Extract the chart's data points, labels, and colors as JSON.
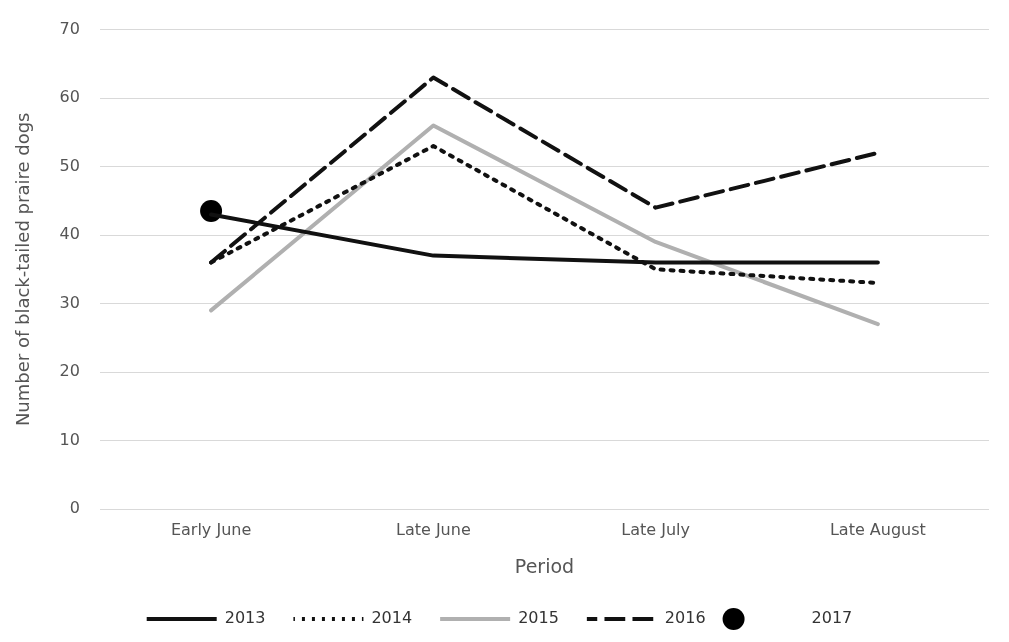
{
  "chart_data": {
    "type": "line",
    "xlabel": "Period",
    "ylabel": "Number of black-tailed praire dogs",
    "categories": [
      "Early June",
      "Late June",
      "Late July",
      "Late August"
    ],
    "series": [
      {
        "name": "2013",
        "color": "#111111",
        "values": [
          43,
          37,
          36,
          36
        ],
        "line_style": "solid",
        "marker": "none"
      },
      {
        "name": "2014",
        "color": "#111111",
        "values": [
          36,
          53,
          35,
          33
        ],
        "line_style": "dotted",
        "marker": "none"
      },
      {
        "name": "2015",
        "color": "#b0b0b0",
        "values": [
          29,
          56,
          39,
          27
        ],
        "line_style": "solid",
        "marker": "none"
      },
      {
        "name": "2016",
        "color": "#111111",
        "values": [
          36,
          63,
          44,
          52
        ],
        "line_style": "dashed",
        "marker": "none"
      },
      {
        "name": "2017",
        "type": "scatter",
        "color": "#000000",
        "values": [
          43.5,
          null,
          null,
          null
        ],
        "marker": "circle"
      }
    ],
    "ylim": [
      0,
      70
    ],
    "yticks": [
      0,
      10,
      20,
      30,
      40,
      50,
      60,
      70
    ],
    "grid": "y",
    "legend": "bottom"
  }
}
